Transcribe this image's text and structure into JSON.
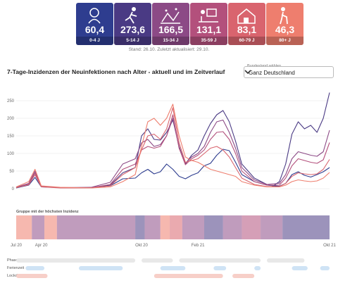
{
  "header": {
    "cards": [
      {
        "value": "60,4",
        "label": "0-4 J",
        "color": "#2e3d8f",
        "icon": "baby-icon"
      },
      {
        "value": "273,6",
        "label": "5-14 J",
        "color": "#4a3a84",
        "icon": "child-running-icon"
      },
      {
        "value": "166,5",
        "label": "15-34 J",
        "color": "#8c4a86",
        "icon": "party-icon"
      },
      {
        "value": "131,1",
        "label": "35-59 J",
        "color": "#b3507c",
        "icon": "desk-worker-icon"
      },
      {
        "value": "83,1",
        "label": "60-79 J",
        "color": "#d9646e",
        "icon": "house-icon"
      },
      {
        "value": "46,3",
        "label": "80+ J",
        "color": "#ee7e6e",
        "icon": "senior-cane-icon"
      }
    ],
    "stand": "Stand: 26.10. Zuletzt aktualisiert: 29.10."
  },
  "title": "7-Tage-Inzidenzen der Neuinfektionen nach Alter - aktuell und im Zeitverlauf",
  "bundesland": {
    "label": "Bundesland wählen",
    "value": "Ganz Deutschland"
  },
  "strip_label": "Gruppe mit der höchsten Inzidenz",
  "timeline_labels": {
    "phasen": "Phasen",
    "ferien": "Ferienzeit",
    "lockdown": "Lockdowns"
  },
  "chart_data": {
    "type": "line",
    "title": "7-Tage-Inzidenzen der Neuinfektionen nach Alter - aktuell und im Zeitverlauf",
    "x_ticks": [
      "Jul 20",
      "Apr 20",
      "Okt 20",
      "Feb 21",
      "Okt 21"
    ],
    "ylim": [
      0,
      280
    ],
    "yticks": [
      0,
      50,
      100,
      150,
      200,
      250
    ],
    "grid": "horizontal",
    "x_index_range": [
      0,
      100
    ],
    "series": [
      {
        "name": "0-4 J",
        "color": "#2e3d8f",
        "points": [
          [
            0,
            2
          ],
          [
            4,
            10
          ],
          [
            6,
            32
          ],
          [
            8,
            5
          ],
          [
            14,
            3
          ],
          [
            24,
            3
          ],
          [
            30,
            8
          ],
          [
            34,
            28
          ],
          [
            38,
            30
          ],
          [
            40,
            45
          ],
          [
            42,
            55
          ],
          [
            44,
            42
          ],
          [
            46,
            48
          ],
          [
            48,
            70
          ],
          [
            50,
            55
          ],
          [
            52,
            35
          ],
          [
            54,
            28
          ],
          [
            56,
            38
          ],
          [
            58,
            45
          ],
          [
            60,
            65
          ],
          [
            62,
            72
          ],
          [
            64,
            95
          ],
          [
            66,
            112
          ],
          [
            68,
            108
          ],
          [
            70,
            75
          ],
          [
            72,
            40
          ],
          [
            76,
            20
          ],
          [
            80,
            10
          ],
          [
            84,
            7
          ],
          [
            86,
            15
          ],
          [
            88,
            40
          ],
          [
            90,
            48
          ],
          [
            92,
            38
          ],
          [
            94,
            33
          ],
          [
            96,
            40
          ],
          [
            98,
            48
          ],
          [
            100,
            60
          ]
        ]
      },
      {
        "name": "5-14 J",
        "color": "#4a3a84",
        "points": [
          [
            0,
            3
          ],
          [
            4,
            12
          ],
          [
            6,
            40
          ],
          [
            8,
            6
          ],
          [
            14,
            3
          ],
          [
            24,
            3
          ],
          [
            30,
            10
          ],
          [
            34,
            45
          ],
          [
            38,
            60
          ],
          [
            40,
            150
          ],
          [
            42,
            170
          ],
          [
            44,
            140
          ],
          [
            46,
            138
          ],
          [
            48,
            160
          ],
          [
            50,
            195
          ],
          [
            52,
            120
          ],
          [
            54,
            70
          ],
          [
            56,
            95
          ],
          [
            58,
            110
          ],
          [
            60,
            150
          ],
          [
            62,
            185
          ],
          [
            64,
            210
          ],
          [
            66,
            222
          ],
          [
            68,
            190
          ],
          [
            70,
            135
          ],
          [
            72,
            70
          ],
          [
            76,
            30
          ],
          [
            80,
            12
          ],
          [
            82,
            8
          ],
          [
            84,
            20
          ],
          [
            86,
            70
          ],
          [
            88,
            155
          ],
          [
            90,
            190
          ],
          [
            92,
            170
          ],
          [
            94,
            180
          ],
          [
            96,
            160
          ],
          [
            98,
            200
          ],
          [
            100,
            273
          ]
        ]
      },
      {
        "name": "15-34 J",
        "color": "#8c4a86",
        "points": [
          [
            0,
            4
          ],
          [
            4,
            15
          ],
          [
            6,
            50
          ],
          [
            8,
            7
          ],
          [
            14,
            3
          ],
          [
            24,
            4
          ],
          [
            30,
            18
          ],
          [
            34,
            70
          ],
          [
            38,
            85
          ],
          [
            40,
            130
          ],
          [
            42,
            140
          ],
          [
            44,
            120
          ],
          [
            46,
            125
          ],
          [
            48,
            150
          ],
          [
            50,
            200
          ],
          [
            52,
            115
          ],
          [
            54,
            72
          ],
          [
            56,
            90
          ],
          [
            58,
            100
          ],
          [
            60,
            120
          ],
          [
            62,
            160
          ],
          [
            64,
            190
          ],
          [
            66,
            195
          ],
          [
            68,
            160
          ],
          [
            70,
            115
          ],
          [
            72,
            60
          ],
          [
            76,
            25
          ],
          [
            80,
            12
          ],
          [
            84,
            15
          ],
          [
            86,
            40
          ],
          [
            88,
            85
          ],
          [
            90,
            105
          ],
          [
            92,
            100
          ],
          [
            94,
            95
          ],
          [
            96,
            92
          ],
          [
            98,
            105
          ],
          [
            100,
            166
          ]
        ]
      },
      {
        "name": "35-59 J",
        "color": "#b3507c",
        "points": [
          [
            0,
            3
          ],
          [
            4,
            13
          ],
          [
            6,
            45
          ],
          [
            8,
            6
          ],
          [
            14,
            3
          ],
          [
            24,
            3
          ],
          [
            30,
            12
          ],
          [
            34,
            55
          ],
          [
            38,
            70
          ],
          [
            40,
            110
          ],
          [
            42,
            120
          ],
          [
            44,
            115
          ],
          [
            46,
            120
          ],
          [
            48,
            150
          ],
          [
            50,
            210
          ],
          [
            52,
            115
          ],
          [
            54,
            68
          ],
          [
            56,
            85
          ],
          [
            58,
            95
          ],
          [
            60,
            110
          ],
          [
            62,
            140
          ],
          [
            64,
            160
          ],
          [
            66,
            162
          ],
          [
            68,
            140
          ],
          [
            70,
            100
          ],
          [
            72,
            50
          ],
          [
            76,
            20
          ],
          [
            80,
            10
          ],
          [
            84,
            10
          ],
          [
            86,
            30
          ],
          [
            88,
            65
          ],
          [
            90,
            85
          ],
          [
            92,
            80
          ],
          [
            94,
            75
          ],
          [
            96,
            72
          ],
          [
            98,
            82
          ],
          [
            100,
            131
          ]
        ]
      },
      {
        "name": "60-79 J",
        "color": "#d9646e",
        "points": [
          [
            0,
            3
          ],
          [
            4,
            11
          ],
          [
            6,
            40
          ],
          [
            8,
            5
          ],
          [
            14,
            2
          ],
          [
            24,
            2
          ],
          [
            30,
            8
          ],
          [
            34,
            40
          ],
          [
            38,
            60
          ],
          [
            40,
            110
          ],
          [
            42,
            150
          ],
          [
            44,
            155
          ],
          [
            46,
            140
          ],
          [
            48,
            170
          ],
          [
            50,
            230
          ],
          [
            52,
            130
          ],
          [
            54,
            75
          ],
          [
            56,
            80
          ],
          [
            58,
            85
          ],
          [
            60,
            100
          ],
          [
            62,
            115
          ],
          [
            64,
            120
          ],
          [
            66,
            110
          ],
          [
            68,
            90
          ],
          [
            70,
            60
          ],
          [
            72,
            30
          ],
          [
            76,
            12
          ],
          [
            80,
            6
          ],
          [
            84,
            6
          ],
          [
            86,
            15
          ],
          [
            88,
            35
          ],
          [
            90,
            45
          ],
          [
            92,
            42
          ],
          [
            94,
            40
          ],
          [
            96,
            42
          ],
          [
            98,
            55
          ],
          [
            100,
            83
          ]
        ]
      },
      {
        "name": "80+ J",
        "color": "#ee7e6e",
        "points": [
          [
            0,
            5
          ],
          [
            4,
            20
          ],
          [
            6,
            55
          ],
          [
            8,
            8
          ],
          [
            14,
            4
          ],
          [
            24,
            2
          ],
          [
            30,
            5
          ],
          [
            34,
            20
          ],
          [
            38,
            40
          ],
          [
            40,
            120
          ],
          [
            42,
            190
          ],
          [
            44,
            200
          ],
          [
            46,
            180
          ],
          [
            48,
            200
          ],
          [
            50,
            240
          ],
          [
            52,
            150
          ],
          [
            54,
            90
          ],
          [
            56,
            80
          ],
          [
            58,
            75
          ],
          [
            60,
            65
          ],
          [
            62,
            55
          ],
          [
            64,
            50
          ],
          [
            66,
            45
          ],
          [
            68,
            40
          ],
          [
            70,
            35
          ],
          [
            72,
            20
          ],
          [
            76,
            10
          ],
          [
            80,
            5
          ],
          [
            84,
            5
          ],
          [
            86,
            10
          ],
          [
            88,
            20
          ],
          [
            90,
            25
          ],
          [
            92,
            22
          ],
          [
            94,
            20
          ],
          [
            96,
            22
          ],
          [
            98,
            30
          ],
          [
            100,
            46
          ]
        ]
      }
    ],
    "highest_group_strip": [
      {
        "from": 0,
        "to": 5,
        "group": "80+ J"
      },
      {
        "from": 5,
        "to": 9,
        "group": "15-34 J"
      },
      {
        "from": 9,
        "to": 13,
        "group": "80+ J"
      },
      {
        "from": 13,
        "to": 30,
        "group": "15-34 J"
      },
      {
        "from": 30,
        "to": 38,
        "group": "15-34 J"
      },
      {
        "from": 38,
        "to": 41,
        "group": "5-14 J"
      },
      {
        "from": 41,
        "to": 46,
        "group": "15-34 J"
      },
      {
        "from": 46,
        "to": 49,
        "group": "80+ J"
      },
      {
        "from": 49,
        "to": 53,
        "group": "60-79 J"
      },
      {
        "from": 53,
        "to": 60,
        "group": "15-34 J"
      },
      {
        "from": 60,
        "to": 66,
        "group": "5-14 J"
      },
      {
        "from": 66,
        "to": 72,
        "group": "15-34 J"
      },
      {
        "from": 72,
        "to": 78,
        "group": "35-59 J"
      },
      {
        "from": 78,
        "to": 85,
        "group": "15-34 J"
      },
      {
        "from": 85,
        "to": 100,
        "group": "5-14 J"
      }
    ]
  }
}
